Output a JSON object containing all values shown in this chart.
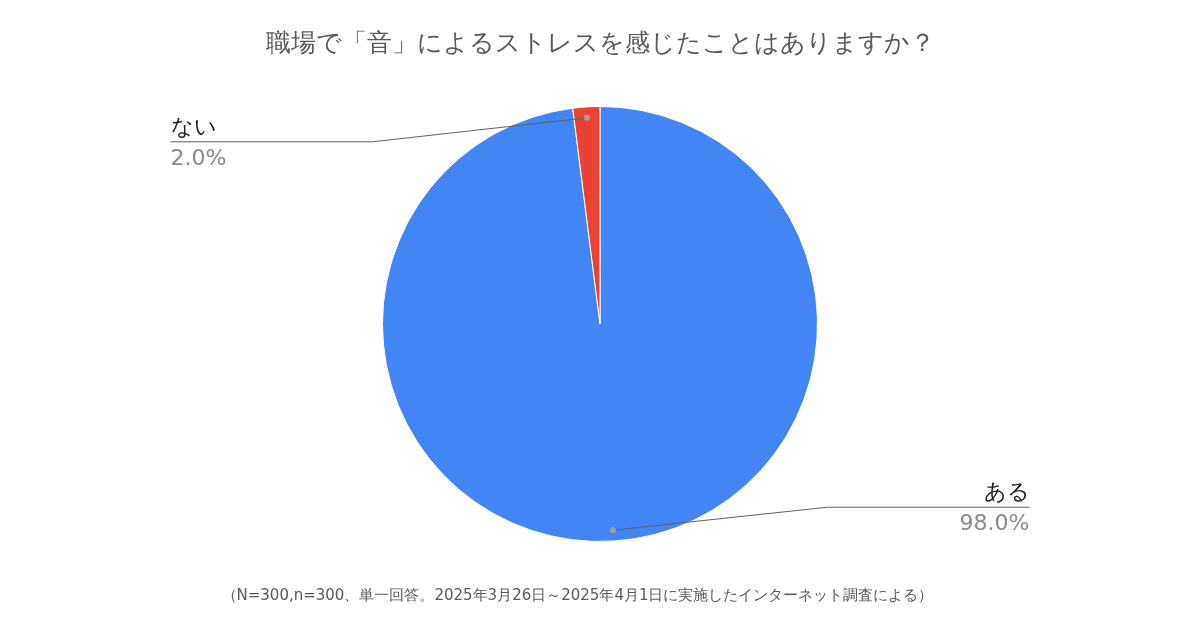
{
  "chart_data": {
    "type": "pie",
    "title": "職場で「音」によるストレスを感じたことはありますか？",
    "categories": [
      "ある",
      "ない"
    ],
    "values": [
      98,
      2
    ],
    "colors": [
      "#4285f4",
      "#ea4335"
    ],
    "value_labels": [
      "98.0%",
      "2.0%"
    ],
    "annotations": [
      "（N=300,n=300、単一回答。2025年3月26日～2025年4月1日に実施したインターネット調査による）"
    ]
  }
}
